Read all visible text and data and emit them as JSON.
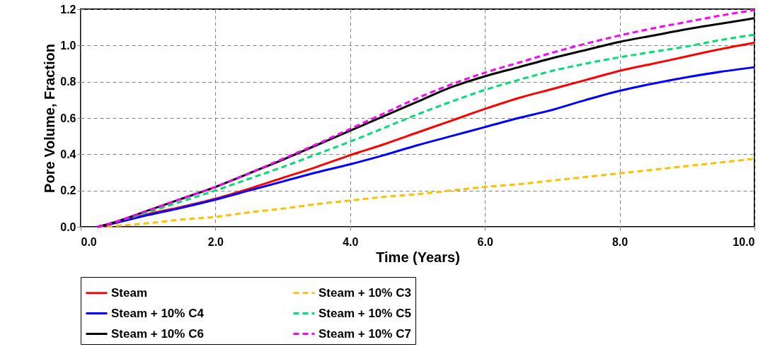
{
  "chart_data": {
    "type": "line",
    "xlabel": "Time (Years)",
    "ylabel": "Pore Volume, Fraction",
    "x": [
      0.25,
      0.5,
      1,
      1.5,
      2,
      2.5,
      3,
      3.5,
      4,
      4.5,
      5,
      5.5,
      6,
      6.5,
      7,
      7.5,
      8,
      8.5,
      9,
      9.5,
      10
    ],
    "series": [
      {
        "name": "Steam",
        "color": "#ff0000",
        "line_style": "solid",
        "values": [
          0,
          0.02,
          0.07,
          0.11,
          0.155,
          0.21,
          0.27,
          0.33,
          0.395,
          0.455,
          0.52,
          0.585,
          0.65,
          0.71,
          0.76,
          0.81,
          0.86,
          0.9,
          0.94,
          0.98,
          1.015
        ]
      },
      {
        "name": "Steam + 10% C3",
        "color": "#ffc000",
        "line_style": "dashed",
        "values": [
          0,
          0.005,
          0.02,
          0.04,
          0.055,
          0.08,
          0.1,
          0.125,
          0.145,
          0.165,
          0.18,
          0.2,
          0.22,
          0.235,
          0.255,
          0.275,
          0.295,
          0.315,
          0.335,
          0.355,
          0.375
        ]
      },
      {
        "name": "Steam + 10% C4",
        "color": "#0000ff",
        "line_style": "solid",
        "values": [
          0,
          0.02,
          0.065,
          0.105,
          0.15,
          0.2,
          0.25,
          0.3,
          0.345,
          0.395,
          0.45,
          0.5,
          0.55,
          0.6,
          0.645,
          0.7,
          0.75,
          0.79,
          0.825,
          0.855,
          0.88
        ]
      },
      {
        "name": "Steam + 10% C5",
        "color": "#00e070",
        "line_style": "dashed",
        "values": [
          0,
          0.025,
          0.08,
          0.14,
          0.2,
          0.265,
          0.33,
          0.4,
          0.47,
          0.545,
          0.62,
          0.69,
          0.755,
          0.81,
          0.86,
          0.9,
          0.935,
          0.965,
          0.995,
          1.03,
          1.06
        ]
      },
      {
        "name": "Steam + 10% C6",
        "color": "#000000",
        "line_style": "solid",
        "values": [
          0,
          0.025,
          0.09,
          0.155,
          0.22,
          0.295,
          0.37,
          0.45,
          0.53,
          0.61,
          0.69,
          0.77,
          0.83,
          0.88,
          0.93,
          0.975,
          1.02,
          1.055,
          1.09,
          1.12,
          1.15
        ]
      },
      {
        "name": "Steam + 10% C7",
        "color": "#ff00ff",
        "line_style": "dashed",
        "values": [
          0,
          0.025,
          0.09,
          0.155,
          0.22,
          0.295,
          0.375,
          0.455,
          0.54,
          0.625,
          0.71,
          0.785,
          0.85,
          0.905,
          0.96,
          1.01,
          1.055,
          1.095,
          1.13,
          1.165,
          1.195
        ]
      }
    ],
    "xlim": [
      0,
      10
    ],
    "ylim": [
      0,
      1.2
    ],
    "xticks": [
      {
        "value": 0,
        "label": "0.0"
      },
      {
        "value": 2,
        "label": "2.0"
      },
      {
        "value": 4,
        "label": "4.0"
      },
      {
        "value": 6,
        "label": "6.0"
      },
      {
        "value": 8,
        "label": "8.0"
      },
      {
        "value": 10,
        "label": "10.0"
      }
    ],
    "yticks": [
      {
        "value": 0,
        "label": "0.0"
      },
      {
        "value": 0.2,
        "label": "0.2"
      },
      {
        "value": 0.4,
        "label": "0.4"
      },
      {
        "value": 0.6,
        "label": "0.6"
      },
      {
        "value": 0.8,
        "label": "0.8"
      },
      {
        "value": 1.0,
        "label": "1.0"
      },
      {
        "value": 1.2,
        "label": "1.2"
      }
    ],
    "grid": true,
    "legend": "bottom",
    "marker": "none"
  }
}
